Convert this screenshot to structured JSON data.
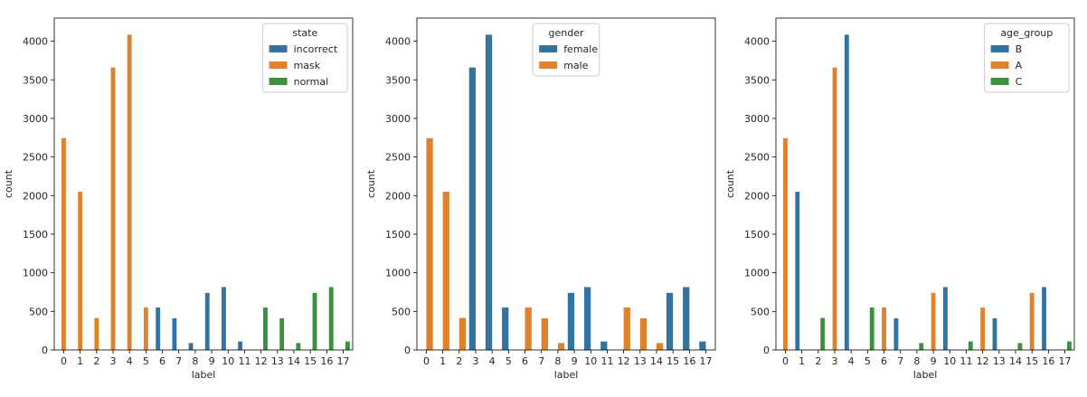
{
  "chart_data": [
    {
      "type": "bar",
      "xlabel": "label",
      "ylabel": "count",
      "ylim": [
        0,
        4300
      ],
      "yticks": [
        0,
        500,
        1000,
        1500,
        2000,
        2500,
        3000,
        3500,
        4000
      ],
      "categories": [
        "0",
        "1",
        "2",
        "3",
        "4",
        "5",
        "6",
        "7",
        "8",
        "9",
        "10",
        "11",
        "12",
        "13",
        "14",
        "15",
        "16",
        "17"
      ],
      "legend": {
        "title": "state",
        "placement": "top-right"
      },
      "series": [
        {
          "name": "incorrect",
          "color": "#3274a1",
          "values": [
            0,
            0,
            0,
            0,
            0,
            0,
            550,
            410,
            90,
            740,
            815,
            110,
            0,
            0,
            0,
            0,
            0,
            0
          ]
        },
        {
          "name": "mask",
          "color": "#e1812c",
          "values": [
            2745,
            2050,
            415,
            3660,
            4085,
            550,
            0,
            0,
            0,
            0,
            0,
            0,
            0,
            0,
            0,
            0,
            0,
            0
          ]
        },
        {
          "name": "normal",
          "color": "#3a923a",
          "values": [
            0,
            0,
            0,
            0,
            0,
            0,
            0,
            0,
            0,
            0,
            0,
            0,
            550,
            410,
            90,
            740,
            815,
            110
          ]
        }
      ]
    },
    {
      "type": "bar",
      "xlabel": "label",
      "ylabel": "count",
      "ylim": [
        0,
        4300
      ],
      "yticks": [
        0,
        500,
        1000,
        1500,
        2000,
        2500,
        3000,
        3500,
        4000
      ],
      "categories": [
        "0",
        "1",
        "2",
        "3",
        "4",
        "5",
        "6",
        "7",
        "8",
        "9",
        "10",
        "11",
        "12",
        "13",
        "14",
        "15",
        "16",
        "17"
      ],
      "legend": {
        "title": "gender",
        "placement": "top-center"
      },
      "series": [
        {
          "name": "female",
          "color": "#3274a1",
          "values": [
            0,
            0,
            0,
            3660,
            4085,
            550,
            0,
            0,
            0,
            740,
            815,
            110,
            0,
            0,
            0,
            740,
            815,
            110
          ]
        },
        {
          "name": "male",
          "color": "#e1812c",
          "values": [
            2745,
            2050,
            415,
            0,
            0,
            0,
            550,
            410,
            90,
            0,
            0,
            0,
            550,
            410,
            90,
            0,
            0,
            0
          ]
        }
      ]
    },
    {
      "type": "bar",
      "xlabel": "label",
      "ylabel": "count",
      "ylim": [
        0,
        4300
      ],
      "yticks": [
        0,
        500,
        1000,
        1500,
        2000,
        2500,
        3000,
        3500,
        4000
      ],
      "categories": [
        "0",
        "1",
        "2",
        "3",
        "4",
        "5",
        "6",
        "7",
        "8",
        "9",
        "10",
        "11",
        "12",
        "13",
        "14",
        "15",
        "16",
        "17"
      ],
      "legend": {
        "title": "age_group",
        "placement": "top-right"
      },
      "series": [
        {
          "name": "B",
          "color": "#3274a1",
          "values": [
            0,
            2050,
            0,
            0,
            4085,
            0,
            0,
            410,
            0,
            0,
            815,
            0,
            0,
            410,
            0,
            0,
            815,
            0
          ]
        },
        {
          "name": "A",
          "color": "#e1812c",
          "values": [
            2745,
            0,
            0,
            3660,
            0,
            0,
            550,
            0,
            0,
            740,
            0,
            0,
            550,
            0,
            0,
            740,
            0,
            0
          ]
        },
        {
          "name": "C",
          "color": "#3a923a",
          "values": [
            0,
            0,
            415,
            0,
            0,
            550,
            0,
            0,
            90,
            0,
            0,
            110,
            0,
            0,
            90,
            0,
            0,
            110
          ]
        }
      ]
    }
  ]
}
